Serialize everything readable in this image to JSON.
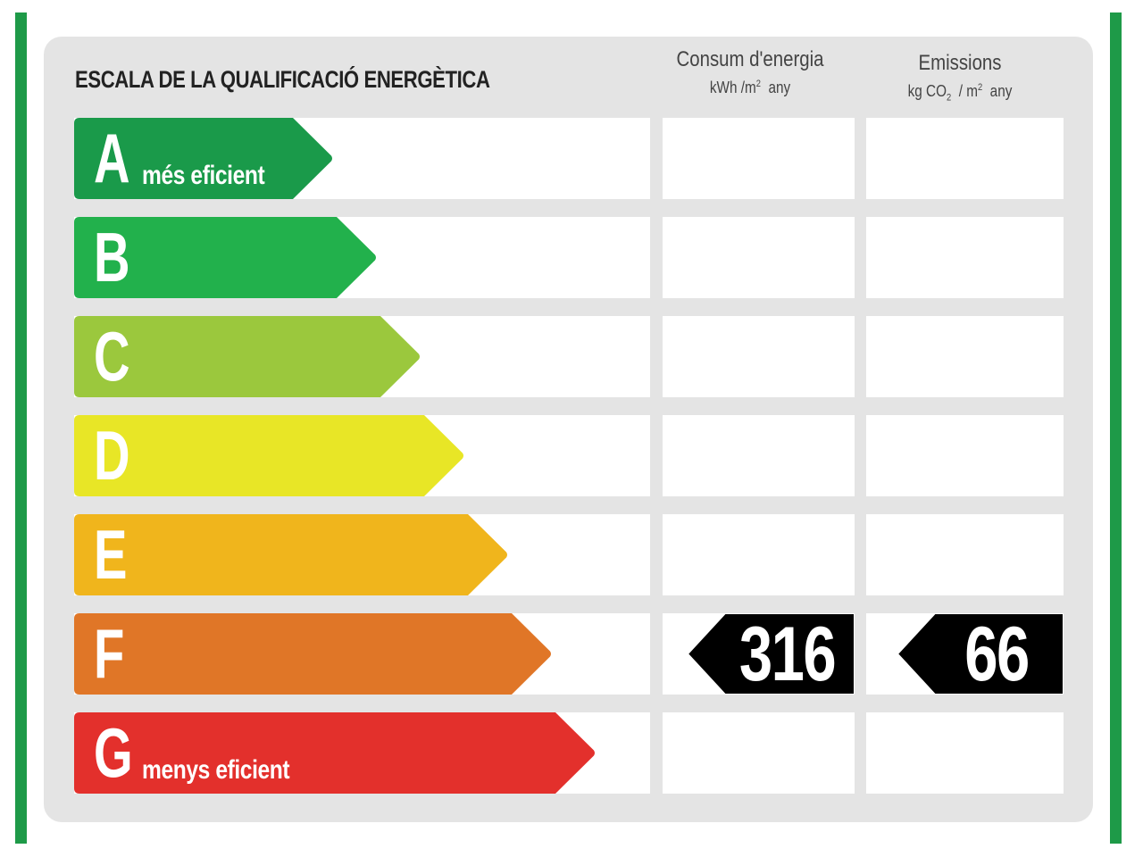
{
  "title": "ESCALA DE LA QUALIFICACIÓ ENERGÈTICA",
  "columns": {
    "energy": {
      "label": "Consum d'energia",
      "unit_prefix": "kWh /m",
      "unit_exp": "2",
      "unit_suffix": "any"
    },
    "emissions": {
      "label": "Emissions",
      "unit_prefix": "kg CO",
      "unit_sub": "2",
      "unit_mid": "/ m",
      "unit_exp": "2",
      "unit_suffix": "any"
    }
  },
  "grades": [
    {
      "letter": "A",
      "label": "més eficient",
      "color": "#1a9a4a"
    },
    {
      "letter": "B",
      "label": "",
      "color": "#22b14c"
    },
    {
      "letter": "C",
      "label": "",
      "color": "#9bc83d"
    },
    {
      "letter": "D",
      "label": "",
      "color": "#e8e626"
    },
    {
      "letter": "E",
      "label": "",
      "color": "#f0b51c"
    },
    {
      "letter": "F",
      "label": "",
      "color": "#e07627"
    },
    {
      "letter": "G",
      "label": "menys eficient",
      "color": "#e3302c"
    }
  ],
  "rating": {
    "grade": "F",
    "energy_value": "316",
    "emissions_value": "66",
    "badge_color": "#000000"
  },
  "colors": {
    "frame_green": "#1e9a48",
    "panel_gray": "#e4e4e4"
  }
}
